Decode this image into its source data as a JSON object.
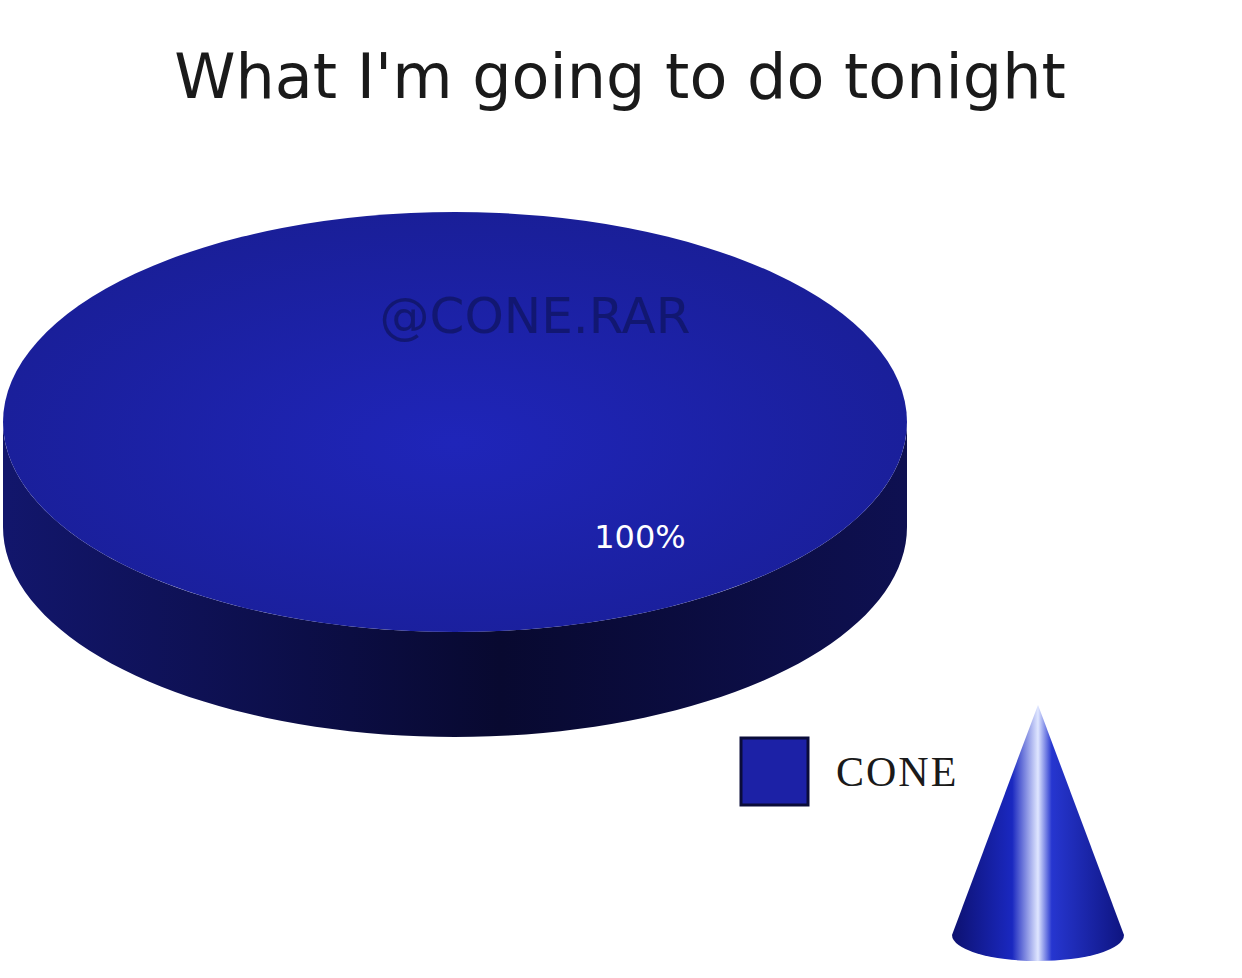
{
  "chart_data": {
    "type": "pie",
    "title": "What I'm going to do tonight",
    "categories": [
      "CONE"
    ],
    "values": [
      100
    ],
    "value_labels": [
      "100%"
    ],
    "colors": [
      "#1c21a6"
    ],
    "data_labels": true,
    "legend": "lower right",
    "annotations": [
      "@CONE.RAR"
    ]
  }
}
